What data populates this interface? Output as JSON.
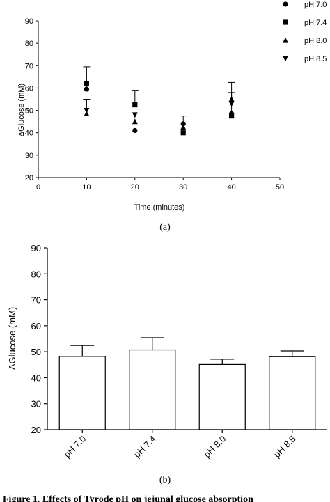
{
  "chart_data": [
    {
      "type": "scatter",
      "panel_label": "(a)",
      "xlabel": "Time (minutes)",
      "ylabel": "ΔGlucose (mM)",
      "xlim": [
        0,
        50
      ],
      "ylim": [
        20,
        90
      ],
      "x_ticks": [
        "0",
        "10",
        "20",
        "30",
        "40",
        "50"
      ],
      "y_ticks": [
        "20",
        "30",
        "40",
        "50",
        "60",
        "70",
        "80",
        "90"
      ],
      "error_bars": "upper",
      "legend_position": "top-right",
      "series": [
        {
          "name": "pH 7.0",
          "marker": "circle",
          "x": [
            10,
            20,
            30,
            40
          ],
          "y": [
            59.5,
            41,
            44,
            48.5
          ],
          "err": [
            10,
            0,
            0,
            0
          ]
        },
        {
          "name": "pH 7.4",
          "marker": "square",
          "x": [
            10,
            20,
            30,
            40
          ],
          "y": [
            62,
            52.5,
            40,
            47.5
          ],
          "err": [
            0,
            6.5,
            0,
            15
          ]
        },
        {
          "name": "pH 8.0",
          "marker": "triangle-up",
          "x": [
            10,
            20,
            30,
            40
          ],
          "y": [
            48.5,
            45,
            42.5,
            55
          ],
          "err": [
            0,
            0,
            0,
            0
          ]
        },
        {
          "name": "pH 8.5",
          "marker": "triangle-down",
          "x": [
            10,
            20,
            30,
            40
          ],
          "y": [
            50,
            48,
            43.5,
            53
          ],
          "err": [
            5,
            0,
            4,
            5
          ]
        }
      ]
    },
    {
      "type": "bar",
      "panel_label": "(b)",
      "ylabel": "ΔGlucose (mM)",
      "ylim": [
        20,
        90
      ],
      "y_ticks": [
        "20",
        "30",
        "40",
        "50",
        "60",
        "70",
        "80",
        "90"
      ],
      "categories": [
        "pH 7.0",
        "pH 7.4",
        "pH 8.0",
        "pH 8.5"
      ],
      "values": [
        48.2,
        50.7,
        45.1,
        48.1
      ],
      "errors": [
        4.2,
        4.7,
        2.0,
        2.2
      ],
      "error_bars": "upper",
      "bar_color": "#ffffff"
    }
  ],
  "caption": "Figure 1. Effects of Tyrode pH on jejunal glucose absorption"
}
